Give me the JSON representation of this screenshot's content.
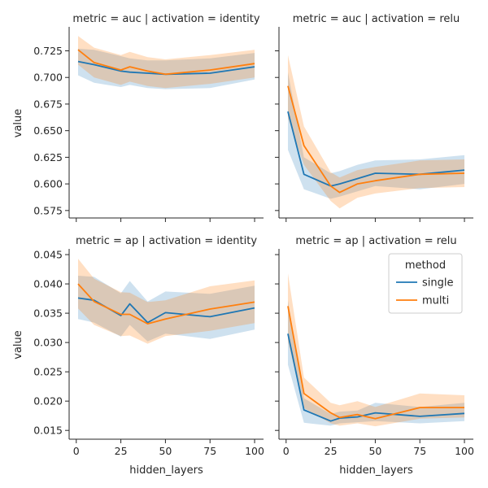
{
  "colors": {
    "single": "#1f77b4",
    "multi": "#ff7f0e",
    "band_single": "#1f77b4",
    "band_multi": "#ff7f0e"
  },
  "legend": {
    "title": "method",
    "items": [
      "single",
      "multi"
    ],
    "location": "top-right of bottom-right panel"
  },
  "chart_data": [
    {
      "type": "line",
      "title": "metric = auc | activation = identity",
      "xlabel": "",
      "ylabel": "value",
      "xlim": [
        -4,
        105
      ],
      "ylim": [
        0.568,
        0.746
      ],
      "xticks": [
        0,
        25,
        50,
        75,
        100
      ],
      "xtick_labels": [],
      "yticks": [
        0.575,
        0.6,
        0.625,
        0.65,
        0.675,
        0.7,
        0.725
      ],
      "ytick_labels": [
        "0.575",
        "0.600",
        "0.625",
        "0.650",
        "0.675",
        "0.700",
        "0.725"
      ],
      "x": [
        1,
        10,
        25,
        30,
        40,
        50,
        75,
        100
      ],
      "series": [
        {
          "name": "single",
          "values": [
            0.715,
            0.712,
            0.706,
            0.705,
            0.704,
            0.703,
            0.704,
            0.71
          ],
          "lower": [
            0.702,
            0.695,
            0.691,
            0.693,
            0.69,
            0.689,
            0.69,
            0.698
          ],
          "upper": [
            0.727,
            0.726,
            0.72,
            0.718,
            0.716,
            0.716,
            0.718,
            0.723
          ]
        },
        {
          "name": "multi",
          "values": [
            0.726,
            0.714,
            0.707,
            0.71,
            0.706,
            0.703,
            0.707,
            0.713
          ],
          "lower": [
            0.712,
            0.7,
            0.693,
            0.696,
            0.692,
            0.69,
            0.694,
            0.7
          ],
          "upper": [
            0.739,
            0.728,
            0.721,
            0.724,
            0.719,
            0.717,
            0.721,
            0.726
          ]
        }
      ]
    },
    {
      "type": "line",
      "title": "metric = auc | activation = relu",
      "xlabel": "",
      "ylabel": "",
      "xlim": [
        -4,
        105
      ],
      "ylim": [
        0.568,
        0.746
      ],
      "xticks": [
        0,
        25,
        50,
        75,
        100
      ],
      "xtick_labels": [],
      "yticks": [
        0.575,
        0.6,
        0.625,
        0.65,
        0.675,
        0.7,
        0.725
      ],
      "ytick_labels": [],
      "x": [
        1,
        10,
        25,
        30,
        40,
        50,
        75,
        100
      ],
      "series": [
        {
          "name": "single",
          "values": [
            0.668,
            0.609,
            0.598,
            0.6,
            0.605,
            0.61,
            0.609,
            0.613
          ],
          "lower": [
            0.632,
            0.595,
            0.586,
            0.588,
            0.593,
            0.598,
            0.595,
            0.6
          ],
          "upper": [
            0.705,
            0.625,
            0.61,
            0.612,
            0.618,
            0.622,
            0.623,
            0.627
          ]
        },
        {
          "name": "multi",
          "values": [
            0.692,
            0.636,
            0.598,
            0.592,
            0.6,
            0.603,
            0.609,
            0.61
          ],
          "lower": [
            0.662,
            0.618,
            0.584,
            0.577,
            0.587,
            0.591,
            0.596,
            0.597
          ],
          "upper": [
            0.721,
            0.654,
            0.611,
            0.606,
            0.613,
            0.616,
            0.622,
            0.623
          ]
        }
      ]
    },
    {
      "type": "line",
      "title": "metric = ap | activation = identity",
      "xlabel": "hidden_layers",
      "ylabel": "value",
      "xlim": [
        -4,
        105
      ],
      "ylim": [
        0.0135,
        0.0457
      ],
      "xticks": [
        0,
        25,
        50,
        75,
        100
      ],
      "xtick_labels": [
        "0",
        "25",
        "50",
        "75",
        "100"
      ],
      "yticks": [
        0.015,
        0.02,
        0.025,
        0.03,
        0.035,
        0.04,
        0.045
      ],
      "ytick_labels": [
        "0.015",
        "0.020",
        "0.025",
        "0.030",
        "0.035",
        "0.040",
        "0.045"
      ],
      "x": [
        1,
        10,
        25,
        30,
        40,
        50,
        75,
        100
      ],
      "series": [
        {
          "name": "single",
          "values": [
            0.0376,
            0.0372,
            0.0346,
            0.0366,
            0.0334,
            0.0351,
            0.0344,
            0.0359
          ],
          "lower": [
            0.034,
            0.0334,
            0.031,
            0.033,
            0.0302,
            0.0315,
            0.0306,
            0.0322
          ],
          "upper": [
            0.0414,
            0.0412,
            0.0384,
            0.0405,
            0.037,
            0.0387,
            0.0383,
            0.0397
          ]
        },
        {
          "name": "multi",
          "values": [
            0.04,
            0.037,
            0.0348,
            0.0348,
            0.0332,
            0.034,
            0.0357,
            0.0369
          ],
          "lower": [
            0.0358,
            0.033,
            0.0311,
            0.0312,
            0.0298,
            0.0311,
            0.032,
            0.0333
          ],
          "upper": [
            0.0443,
            0.0409,
            0.0386,
            0.0385,
            0.0369,
            0.0372,
            0.0396,
            0.0406
          ]
        }
      ]
    },
    {
      "type": "line",
      "title": "metric = ap | activation = relu",
      "xlabel": "hidden_layers",
      "ylabel": "",
      "xlim": [
        -4,
        105
      ],
      "ylim": [
        0.0135,
        0.0457
      ],
      "xticks": [
        0,
        25,
        50,
        75,
        100
      ],
      "xtick_labels": [
        "0",
        "25",
        "50",
        "75",
        "100"
      ],
      "yticks": [
        0.015,
        0.02,
        0.025,
        0.03,
        0.035,
        0.04,
        0.045
      ],
      "ytick_labels": [],
      "x": [
        1,
        10,
        25,
        30,
        40,
        50,
        75,
        100
      ],
      "series": [
        {
          "name": "single",
          "values": [
            0.0315,
            0.0185,
            0.0166,
            0.0171,
            0.0173,
            0.018,
            0.0174,
            0.0179
          ],
          "lower": [
            0.0262,
            0.0163,
            0.0158,
            0.0162,
            0.0164,
            0.0166,
            0.0162,
            0.0166
          ],
          "upper": [
            0.0372,
            0.0205,
            0.0178,
            0.0182,
            0.0184,
            0.0197,
            0.019,
            0.0197
          ]
        },
        {
          "name": "multi",
          "values": [
            0.0362,
            0.0213,
            0.018,
            0.0172,
            0.0177,
            0.017,
            0.0189,
            0.0189
          ],
          "lower": [
            0.0302,
            0.0188,
            0.0162,
            0.0158,
            0.0162,
            0.0157,
            0.017,
            0.0172
          ],
          "upper": [
            0.0418,
            0.024,
            0.0197,
            0.0193,
            0.02,
            0.019,
            0.0213,
            0.021
          ]
        }
      ]
    }
  ]
}
